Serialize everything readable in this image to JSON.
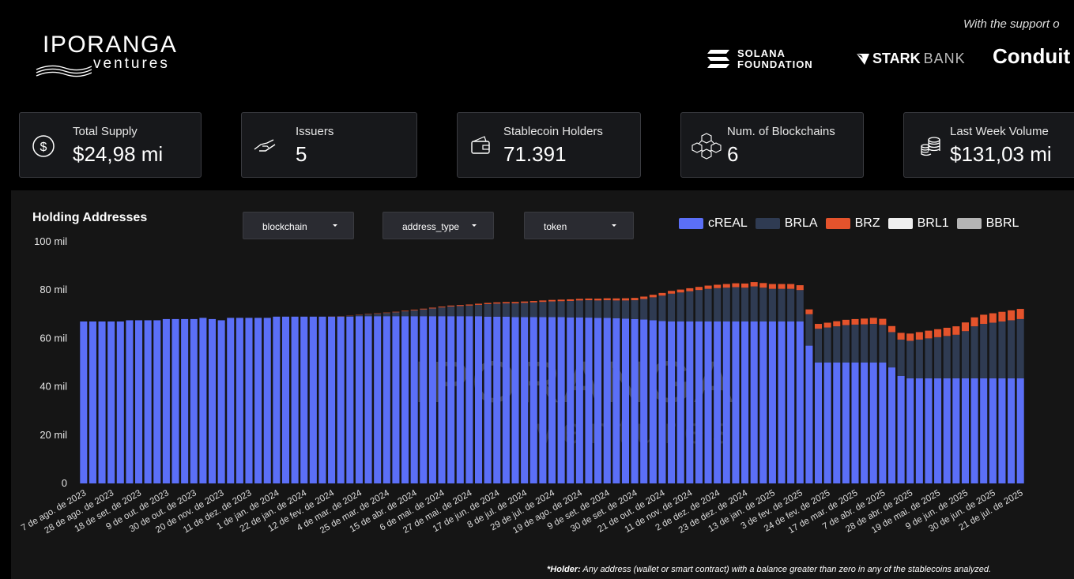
{
  "brand": {
    "name": "IPORANGA",
    "sub": "ventures"
  },
  "support": {
    "text": "With the support o",
    "solana_line1": "SOLANA",
    "solana_line2": "FOUNDATION",
    "stark_bold": "STARK",
    "stark_light": "BANK",
    "conduit": "Conduit"
  },
  "kpis": [
    {
      "label": "Total Supply",
      "value": "$24,98 mi",
      "icon": "dollar-icon"
    },
    {
      "label": "Issuers",
      "value": "5",
      "icon": "handshake-icon"
    },
    {
      "label": "Stablecoin Holders",
      "value": "71.391",
      "icon": "wallet-icon"
    },
    {
      "label": "Num. of Blockchains",
      "value": "6",
      "icon": "blocks-icon"
    },
    {
      "label": "Last Week Volume",
      "value": "$131,03 mi",
      "icon": "coins-icon"
    }
  ],
  "panel": {
    "title": "Holding Addresses",
    "filters": [
      "blockchain",
      "address_type",
      "token"
    ],
    "watermark_main": "IPORANGA",
    "watermark_sub": "ventures",
    "footnote_bold": "*Holder:",
    "footnote_text": " Any address (wallet or smart contract) with a balance greater than zero in any of the stablecoins analyzed."
  },
  "chart_data": {
    "type": "bar",
    "stacked": true,
    "title": "Holding Addresses",
    "ylim": [
      0,
      100000
    ],
    "yticks": [
      0,
      20000,
      40000,
      60000,
      80000,
      100000
    ],
    "ytick_labels": [
      "0",
      "20 mil",
      "40 mil",
      "60 mil",
      "80 mil",
      "100 mil"
    ],
    "xtick_labels": [
      "7 de ago. de 2023",
      "28 de ago. de 2023",
      "18 de set. de 2023",
      "9 de out. de 2023",
      "30 de out. de 2023",
      "20 de nov. de 2023",
      "11 de dez. de 2023",
      "1 de jan. de 2024",
      "22 de jan. de 2024",
      "12 de fev. de 2024",
      "4 de mar. de 2024",
      "25 de mar. de 2024",
      "15 de abr. de 2024",
      "6 de mai. de 2024",
      "27 de mai. de 2024",
      "17 de jun. de 2024",
      "8 de jul. de 2024",
      "29 de jul. de 2024",
      "19 de ago. de 2024",
      "9 de set. de 2024",
      "30 de set. de 2024",
      "21 de out. de 2024",
      "11 de nov. de 2024",
      "2 de dez. de 2024",
      "23 de dez. de 2024",
      "13 de jan. de 2025",
      "3 de fev. de 2025",
      "24 de fev. de 2025",
      "17 de mar. de 2025",
      "7 de abr. de 2025",
      "28 de abr. de 2025",
      "19 de mai. de 2025",
      "9 de jun. de 2025",
      "30 de jun. de 2025",
      "21 de jul. de 2025"
    ],
    "xtick_every": 3,
    "legend_position": "top-right",
    "series": [
      {
        "name": "cREAL",
        "color": "#5b6ff7",
        "values": [
          67000,
          67000,
          67000,
          67000,
          67000,
          67500,
          67500,
          67500,
          67500,
          68000,
          68000,
          68000,
          68000,
          68500,
          68000,
          67500,
          68500,
          68500,
          68500,
          68500,
          68500,
          69000,
          69000,
          69000,
          69000,
          69000,
          69000,
          69000,
          69000,
          69000,
          69200,
          69200,
          69200,
          69200,
          69200,
          69200,
          69200,
          69200,
          69200,
          69200,
          69200,
          69200,
          69200,
          69200,
          69000,
          69000,
          69000,
          68800,
          68800,
          68800,
          68800,
          68800,
          68800,
          68700,
          68700,
          68600,
          68500,
          68500,
          68300,
          68200,
          68000,
          67800,
          67500,
          67200,
          67000,
          67000,
          67000,
          67000,
          67000,
          67000,
          67000,
          67000,
          67000,
          67000,
          67000,
          67000,
          67000,
          67000,
          67000,
          57000,
          50000,
          50000,
          50000,
          50000,
          50000,
          50000,
          50000,
          50000,
          48000,
          44500,
          43500,
          43500,
          43500,
          43500,
          43500,
          43500,
          43500,
          43500,
          43500,
          43500,
          43500,
          43500,
          43500
        ]
      },
      {
        "name": "BRLA",
        "color": "#2f3b52",
        "values": [
          0,
          0,
          0,
          0,
          0,
          0,
          0,
          0,
          0,
          0,
          0,
          0,
          0,
          0,
          0,
          0,
          0,
          0,
          0,
          0,
          0,
          0,
          0,
          0,
          0,
          0,
          0,
          100,
          200,
          300,
          500,
          800,
          1000,
          1300,
          1600,
          2000,
          2400,
          2800,
          3200,
          3600,
          4000,
          4200,
          4400,
          4700,
          5200,
          5400,
          5500,
          5700,
          5900,
          6100,
          6300,
          6500,
          6600,
          6800,
          7000,
          7200,
          7200,
          7300,
          7400,
          7500,
          7800,
          8500,
          9500,
          10500,
          11500,
          12000,
          12500,
          13000,
          13500,
          13800,
          14000,
          14200,
          14000,
          14500,
          14000,
          13500,
          13500,
          13500,
          13000,
          13000,
          14000,
          14500,
          15000,
          15500,
          15700,
          15800,
          16000,
          15600,
          14600,
          15000,
          15500,
          16000,
          16500,
          17000,
          17500,
          18000,
          19500,
          21500,
          22500,
          23000,
          23500,
          24000,
          24500
        ]
      },
      {
        "name": "BRZ",
        "color": "#e4532c",
        "values": [
          0,
          0,
          0,
          0,
          0,
          0,
          0,
          0,
          0,
          0,
          0,
          0,
          0,
          0,
          0,
          0,
          0,
          0,
          0,
          0,
          0,
          0,
          0,
          0,
          0,
          0,
          0,
          50,
          80,
          100,
          120,
          150,
          180,
          200,
          220,
          250,
          280,
          300,
          320,
          350,
          380,
          400,
          420,
          450,
          480,
          500,
          520,
          550,
          560,
          580,
          600,
          620,
          640,
          660,
          680,
          700,
          750,
          800,
          850,
          900,
          950,
          1000,
          1050,
          1100,
          1150,
          1200,
          1250,
          1300,
          1350,
          1400,
          1500,
          1600,
          1700,
          1800,
          1900,
          2000,
          2000,
          2000,
          2000,
          2000,
          2000,
          2000,
          2100,
          2200,
          2300,
          2400,
          2500,
          2500,
          2500,
          2800,
          3000,
          3100,
          3200,
          3300,
          3400,
          3500,
          3600,
          3700,
          3800,
          3900,
          4000,
          4100,
          4200
        ]
      },
      {
        "name": "BRL1",
        "color": "#efefef",
        "values": [
          0,
          0,
          0,
          0,
          0,
          0,
          0,
          0,
          0,
          0,
          0,
          0,
          0,
          0,
          0,
          0,
          0,
          0,
          0,
          0,
          0,
          0,
          0,
          0,
          0,
          0,
          0,
          0,
          0,
          0,
          0,
          0,
          0,
          0,
          0,
          0,
          0,
          0,
          0,
          0,
          0,
          0,
          0,
          0,
          0,
          0,
          0,
          0,
          0,
          0,
          0,
          0,
          0,
          0,
          0,
          0,
          0,
          0,
          0,
          0,
          0,
          0,
          0,
          0,
          0,
          0,
          0,
          0,
          0,
          0,
          0,
          0,
          0,
          0,
          0,
          0,
          0,
          0,
          0,
          0,
          0,
          0,
          0,
          0,
          0,
          0,
          0,
          0,
          0,
          0,
          0,
          0,
          0,
          0,
          0,
          0,
          0,
          0,
          0,
          0,
          0,
          0,
          0
        ]
      },
      {
        "name": "BBRL",
        "color": "#b5b5b5",
        "values": [
          0,
          0,
          0,
          0,
          0,
          0,
          0,
          0,
          0,
          0,
          0,
          0,
          0,
          0,
          0,
          0,
          0,
          0,
          0,
          0,
          0,
          0,
          0,
          0,
          0,
          0,
          0,
          0,
          0,
          0,
          0,
          0,
          0,
          0,
          0,
          0,
          0,
          0,
          0,
          0,
          0,
          0,
          0,
          0,
          0,
          0,
          0,
          0,
          0,
          0,
          0,
          0,
          0,
          0,
          0,
          0,
          0,
          0,
          0,
          0,
          0,
          0,
          0,
          0,
          0,
          0,
          0,
          0,
          0,
          0,
          0,
          0,
          0,
          0,
          0,
          0,
          0,
          0,
          0,
          0,
          0,
          0,
          0,
          0,
          0,
          0,
          0,
          0,
          0,
          0,
          0,
          0,
          0,
          0,
          0,
          0,
          0,
          0,
          0,
          0,
          0,
          0,
          0
        ]
      }
    ]
  }
}
